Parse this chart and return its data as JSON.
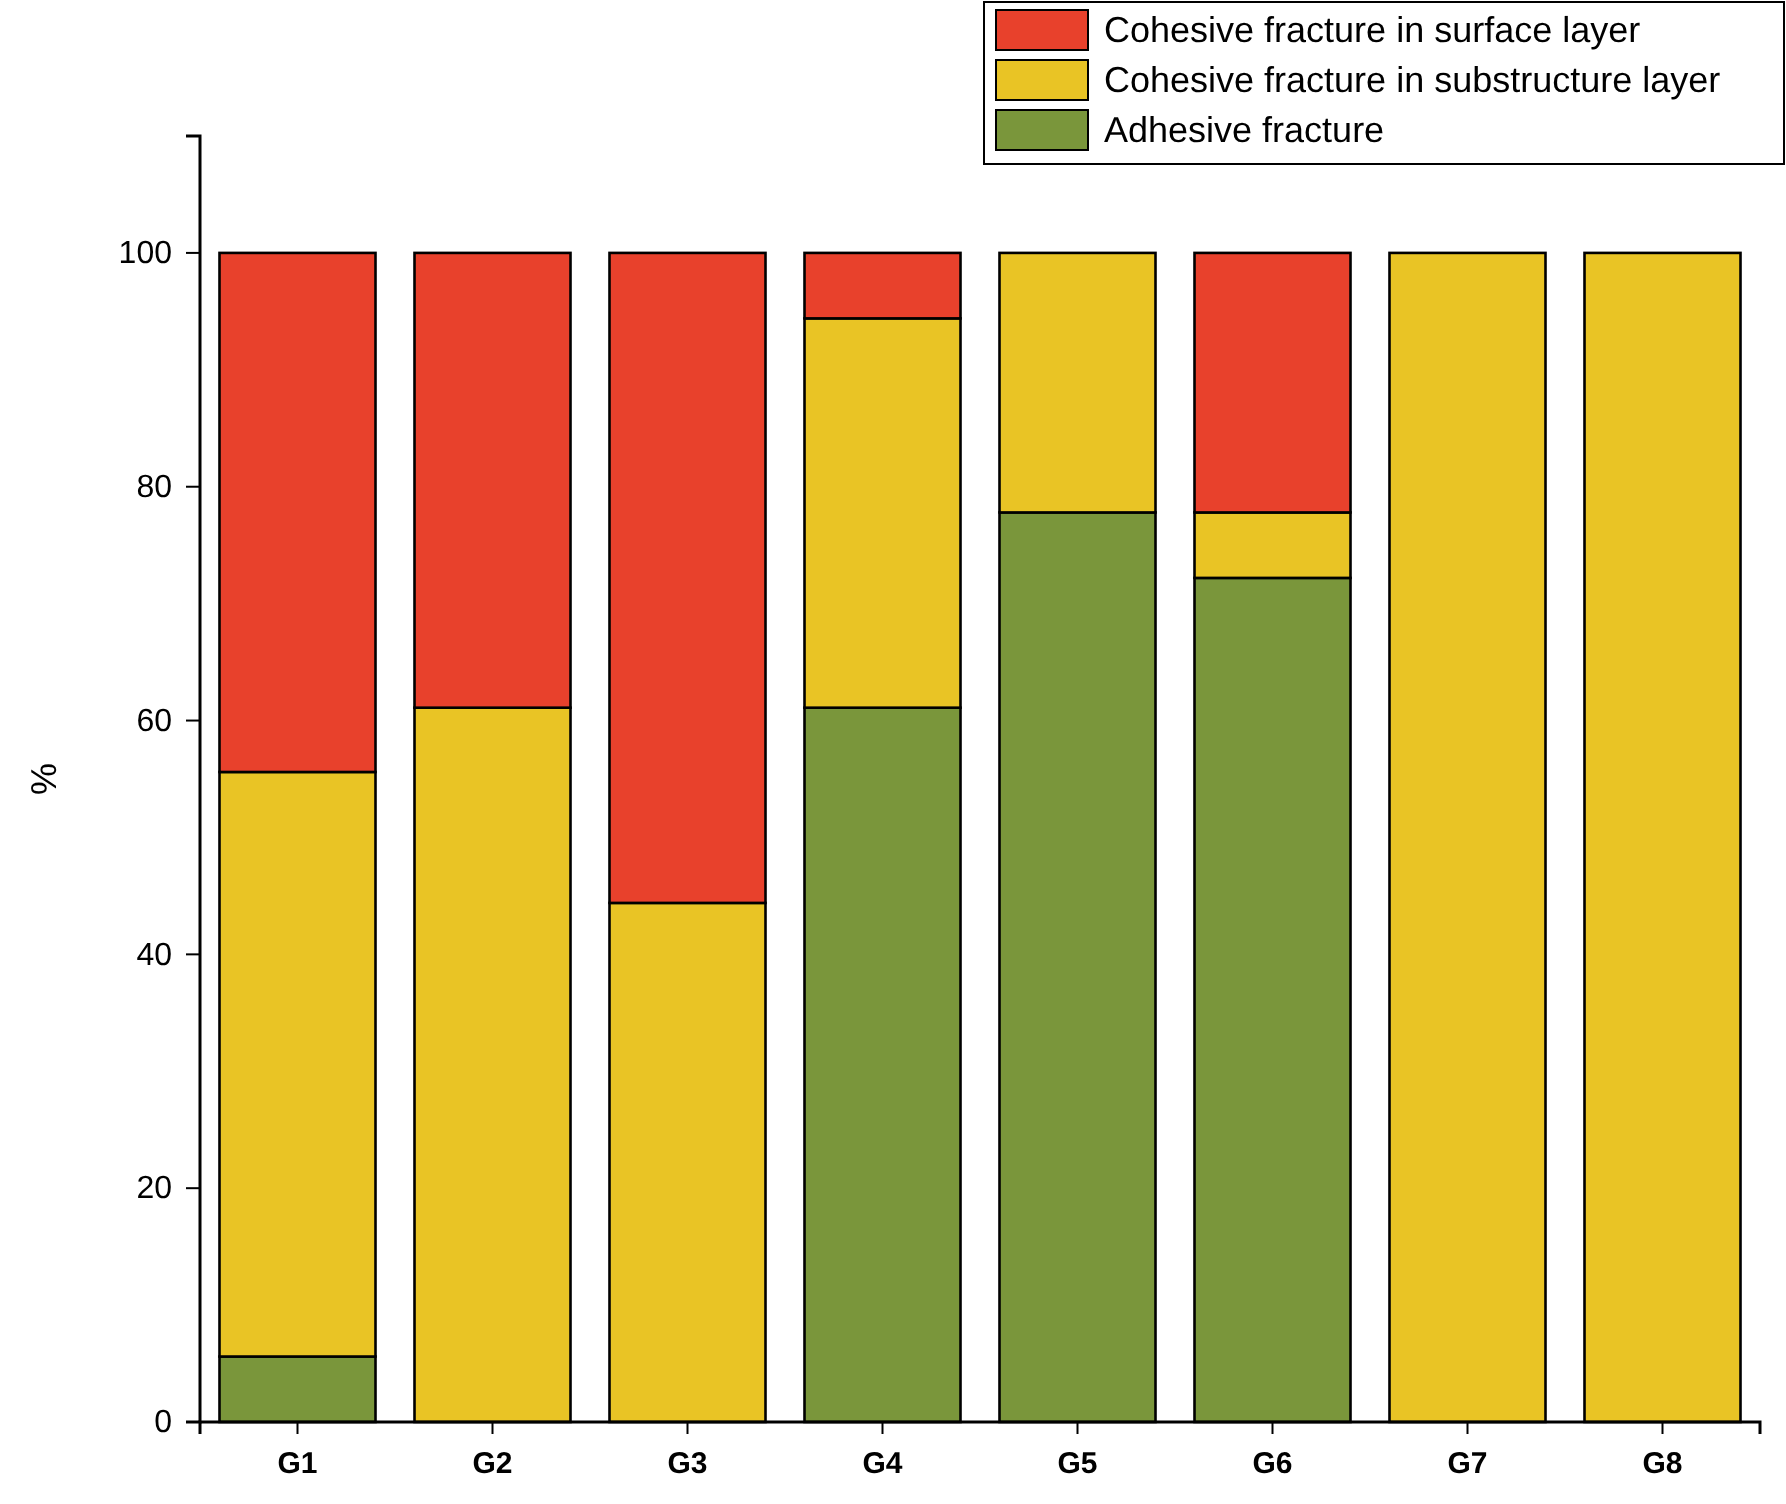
{
  "chart_data": {
    "type": "bar",
    "stacked": true,
    "ylabel": "%",
    "categories": [
      "G1",
      "G2",
      "G3",
      "G4",
      "G5",
      "G6",
      "G7",
      "G8"
    ],
    "series": [
      {
        "name": "Adhesive fracture",
        "color": "#7a963b",
        "values": [
          5.6,
          0,
          0,
          61.1,
          77.8,
          72.2,
          0,
          0
        ]
      },
      {
        "name": "Cohesive fracture in substructure layer",
        "color": "#e9c425",
        "values": [
          50,
          61.1,
          44.4,
          33.3,
          22.2,
          5.6,
          100,
          100
        ]
      },
      {
        "name": "Cohesive fracture in surface layer",
        "color": "#e8412c",
        "values": [
          44.4,
          38.9,
          55.6,
          5.6,
          0,
          22.2,
          0,
          0
        ]
      }
    ],
    "ylim": [
      0,
      110
    ],
    "yticks": [
      0,
      20,
      40,
      60,
      80,
      100
    ],
    "legend": "top right",
    "grid": false
  }
}
